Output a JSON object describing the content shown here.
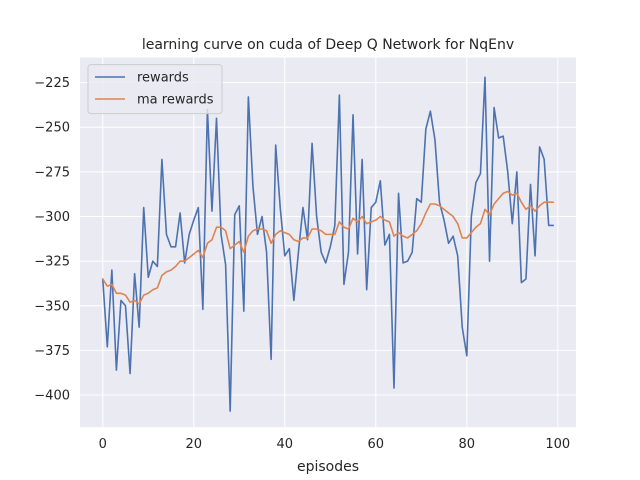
{
  "chart_data": {
    "type": "line",
    "title": "learning curve on cuda of Deep Q Network for NqEnv",
    "xlabel": "episodes",
    "ylabel": "",
    "xlim": [
      -5,
      104
    ],
    "ylim": [
      -418,
      -211
    ],
    "xticks": [
      0,
      20,
      40,
      60,
      80,
      100
    ],
    "yticks": [
      -400,
      -375,
      -350,
      -325,
      -300,
      -275,
      -250,
      -225
    ],
    "grid": true,
    "legend_position": "upper-left",
    "background_color": "#eaeaf2",
    "x": [
      0,
      1,
      2,
      3,
      4,
      5,
      6,
      7,
      8,
      9,
      10,
      11,
      12,
      13,
      14,
      15,
      16,
      17,
      18,
      19,
      20,
      21,
      22,
      23,
      24,
      25,
      26,
      27,
      28,
      29,
      30,
      31,
      32,
      33,
      34,
      35,
      36,
      37,
      38,
      39,
      40,
      41,
      42,
      43,
      44,
      45,
      46,
      47,
      48,
      49,
      50,
      51,
      52,
      53,
      54,
      55,
      56,
      57,
      58,
      59,
      60,
      61,
      62,
      63,
      64,
      65,
      66,
      67,
      68,
      69,
      70,
      71,
      72,
      73,
      74,
      75,
      76,
      77,
      78,
      79,
      80,
      81,
      82,
      83,
      84,
      85,
      86,
      87,
      88,
      89,
      90,
      91,
      92,
      93,
      94,
      95,
      96,
      97,
      98,
      99
    ],
    "series": [
      {
        "name": "rewards",
        "color": "#4c72b0",
        "values": [
          -335,
          -373,
          -330,
          -386,
          -347,
          -350,
          -388,
          -332,
          -362,
          -295,
          -334,
          -325,
          -328,
          -268,
          -310,
          -317,
          -317,
          -298,
          -326,
          -310,
          -302,
          -295,
          -352,
          -240,
          -297,
          -245,
          -310,
          -327,
          -409,
          -299,
          -294,
          -353,
          -233,
          -283,
          -310,
          -300,
          -320,
          -380,
          -260,
          -295,
          -322,
          -318,
          -347,
          -320,
          -295,
          -313,
          -259,
          -300,
          -320,
          -326,
          -317,
          -305,
          -232,
          -338,
          -320,
          -243,
          -321,
          -268,
          -341,
          -295,
          -292,
          -280,
          -316,
          -310,
          -396,
          -287,
          -326,
          -325,
          -320,
          -290,
          -292,
          -251,
          -241,
          -257,
          -292,
          -302,
          -315,
          -311,
          -322,
          -362,
          -378,
          -300,
          -281,
          -276,
          -222,
          -325,
          -239,
          -256,
          -255,
          -275,
          -304,
          -275,
          -337,
          -335,
          -282,
          -322,
          -261,
          -268,
          -305,
          -305
        ]
      },
      {
        "name": "ma rewards",
        "color": "#dd8452",
        "values": [
          -335,
          -339,
          -338,
          -343,
          -343,
          -344,
          -348,
          -347,
          -349,
          -344,
          -343,
          -341,
          -340,
          -333,
          -331,
          -330,
          -328,
          -325,
          -325,
          -323,
          -321,
          -319,
          -323,
          -315,
          -313,
          -306,
          -306,
          -308,
          -318,
          -316,
          -314,
          -320,
          -311,
          -308,
          -307,
          -307,
          -308,
          -315,
          -310,
          -308,
          -309,
          -310,
          -313,
          -314,
          -312,
          -312,
          -307,
          -307,
          -308,
          -310,
          -310,
          -310,
          -303,
          -306,
          -307,
          -301,
          -303,
          -300,
          -304,
          -303,
          -302,
          -300,
          -302,
          -303,
          -311,
          -309,
          -311,
          -312,
          -310,
          -308,
          -304,
          -298,
          -293,
          -293,
          -294,
          -296,
          -298,
          -300,
          -304,
          -312,
          -312,
          -309,
          -306,
          -304,
          -296,
          -299,
          -293,
          -290,
          -287,
          -286,
          -288,
          -287,
          -292,
          -296,
          -294,
          -297,
          -294,
          -292,
          -292,
          -292
        ]
      }
    ]
  }
}
